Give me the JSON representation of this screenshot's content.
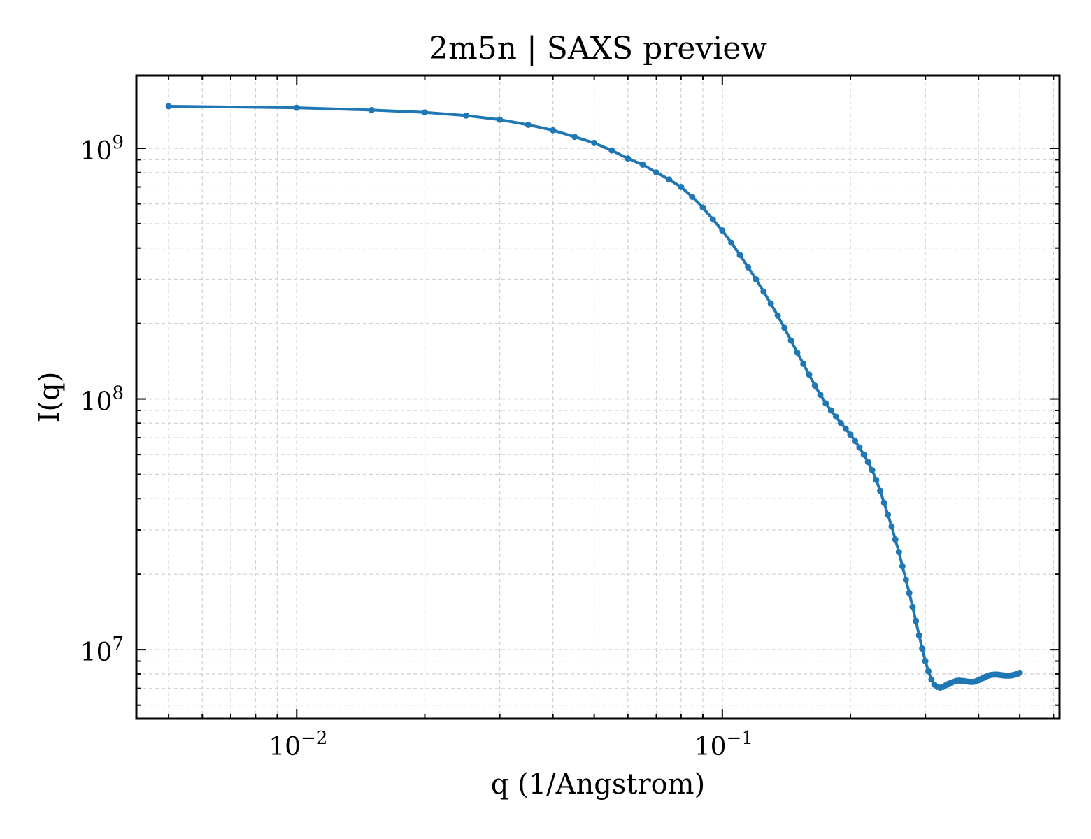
{
  "chart_data": {
    "type": "line",
    "title": "2m5n | SAXS preview",
    "xlabel": "q (1/Angstrom)",
    "ylabel": "I(q)",
    "xscale": "log",
    "yscale": "log",
    "xlim": [
      0.0042,
      0.62
    ],
    "ylim": [
      5300000,
      1950000000
    ],
    "grid": true,
    "legend": "none",
    "line_color": "#1f77b4",
    "x_ticks": [
      {
        "base": "10",
        "exp": "−2"
      },
      {
        "base": "10",
        "exp": "−1"
      }
    ],
    "y_ticks": [
      {
        "base": "10",
        "exp": "7"
      },
      {
        "base": "10",
        "exp": "8"
      },
      {
        "base": "10",
        "exp": "9"
      }
    ],
    "series": [
      {
        "x": [
          0.005,
          0.01,
          0.015,
          0.02,
          0.025,
          0.03,
          0.035,
          0.04,
          0.045,
          0.05,
          0.055,
          0.06,
          0.065,
          0.07,
          0.075,
          0.08,
          0.085,
          0.09,
          0.095,
          0.1,
          0.105,
          0.11,
          0.115,
          0.12,
          0.125,
          0.13,
          0.135,
          0.14,
          0.145,
          0.15,
          0.155,
          0.16,
          0.165,
          0.17,
          0.175,
          0.18,
          0.185,
          0.19,
          0.195,
          0.2,
          0.205,
          0.21,
          0.215,
          0.22,
          0.225,
          0.23,
          0.235,
          0.24,
          0.245,
          0.25,
          0.255,
          0.26,
          0.265,
          0.27,
          0.275,
          0.28,
          0.285,
          0.29,
          0.295,
          0.3,
          0.305,
          0.31,
          0.315,
          0.32,
          0.325,
          0.33,
          0.335,
          0.34,
          0.345,
          0.35,
          0.355,
          0.36,
          0.365,
          0.37,
          0.375,
          0.38,
          0.385,
          0.39,
          0.395,
          0.4,
          0.405,
          0.41,
          0.415,
          0.42,
          0.425,
          0.43,
          0.435,
          0.44,
          0.445,
          0.45,
          0.455,
          0.46,
          0.465,
          0.47,
          0.475,
          0.48,
          0.485,
          0.49,
          0.495,
          0.5
        ],
        "y": [
          1470000000,
          1450000000,
          1420000000,
          1390000000,
          1350000000,
          1300000000,
          1240000000,
          1180000000,
          1110000000,
          1050000000,
          980000000,
          910000000,
          860000000,
          800000000,
          750000000,
          700000000,
          640000000,
          580000000,
          520000000,
          470000000,
          420000000,
          375000000,
          335000000,
          300000000,
          268000000,
          240000000,
          215000000,
          192000000,
          171000000,
          153000000,
          138000000,
          125000000,
          113000000,
          104000000,
          96000000,
          90000000,
          85000000,
          80000000,
          76000000,
          72000000,
          68000000,
          64000000,
          60000000,
          56000000,
          52000000,
          47500000,
          43000000,
          38500000,
          34500000,
          31000000,
          27500000,
          24500000,
          21500000,
          19000000,
          16800000,
          14800000,
          13000000,
          11400000,
          10100000,
          9000000,
          8200000,
          7600000,
          7250000,
          7100000,
          7050000,
          7100000,
          7200000,
          7300000,
          7380000,
          7450000,
          7500000,
          7520000,
          7510000,
          7490000,
          7460000,
          7440000,
          7430000,
          7440000,
          7480000,
          7550000,
          7620000,
          7700000,
          7780000,
          7850000,
          7900000,
          7930000,
          7950000,
          7950000,
          7940000,
          7920000,
          7900000,
          7880000,
          7870000,
          7870000,
          7880000,
          7900000,
          7930000,
          7970000,
          8020000,
          8080000
        ]
      }
    ]
  }
}
